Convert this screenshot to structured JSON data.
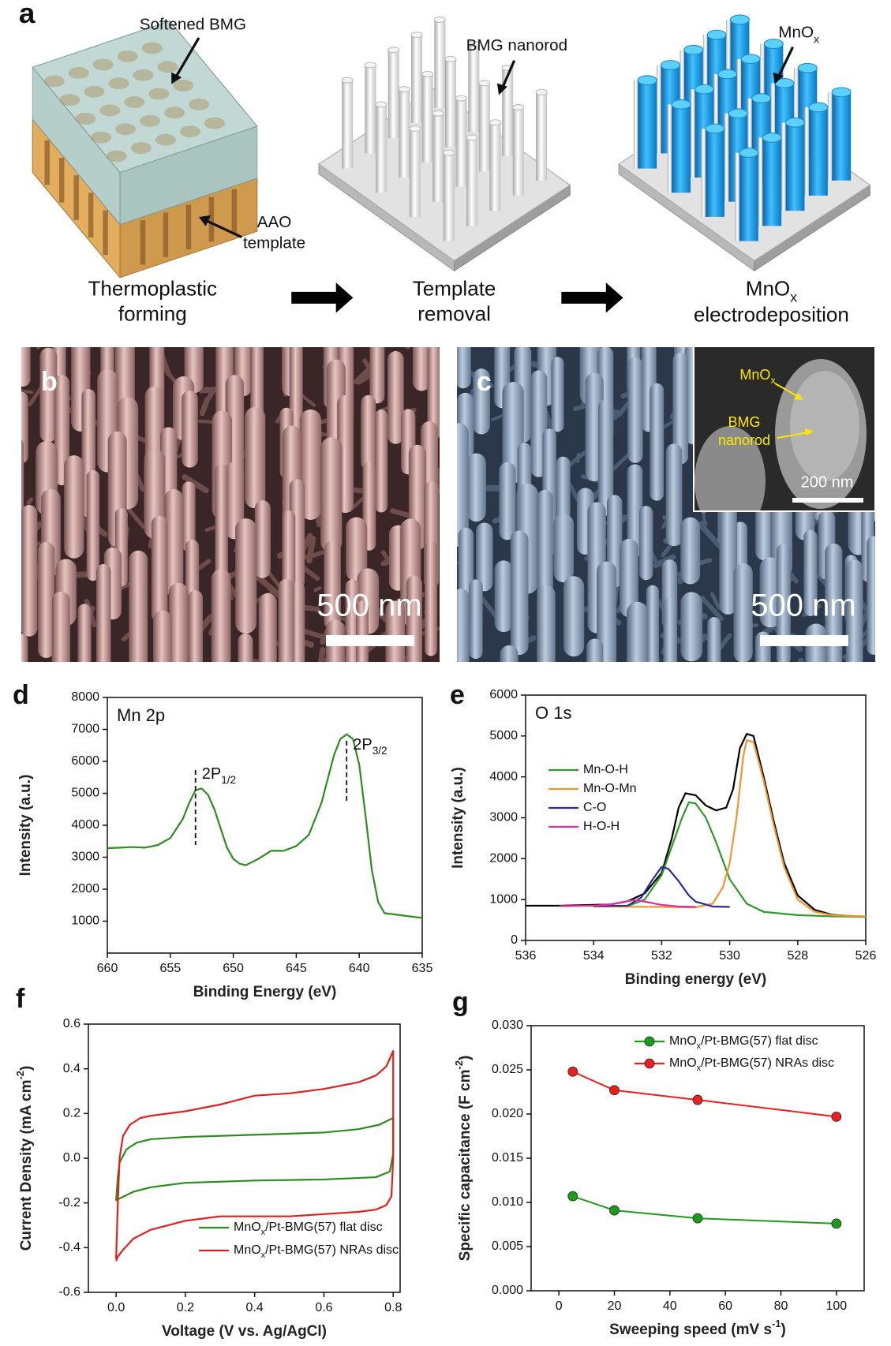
{
  "panel_a": {
    "letter": "a",
    "softened_bmg": "Softened BMG",
    "aao": "AAO",
    "template": "template",
    "bmg_nanorod": "BMG nanorod",
    "mnox": [
      "MnO",
      {
        "sub": "x"
      }
    ],
    "step1": [
      "Thermoplastic",
      "forming"
    ],
    "step2": [
      "Template",
      "removal"
    ],
    "step3": [
      [
        "MnO",
        {
          "sub": "x"
        }
      ],
      "electrodeposition"
    ]
  },
  "panel_b": {
    "letter": "b",
    "scale": "500 nm"
  },
  "panel_c": {
    "letter": "c",
    "scale": "500 nm",
    "inset": {
      "mnox": [
        "MnO",
        {
          "sub": "x"
        }
      ],
      "bmg": "BMG",
      "nanorod": "nanorod",
      "scale": "200 nm"
    }
  },
  "chart_data": [
    {
      "type": "line",
      "panel": "d",
      "label": "Mn 2p",
      "x_label": "Binding Energy (eV)",
      "y_label": "Intensity (a.u.)",
      "xlim": [
        660,
        635
      ],
      "xticks": [
        660,
        655,
        650,
        645,
        640,
        635
      ],
      "ylim": [
        0,
        8000
      ],
      "yticks": [
        1000,
        2000,
        3000,
        4000,
        5000,
        6000,
        7000,
        8000
      ],
      "annotations": [
        {
          "text": [
            "2P",
            {
              "sub": "1/2"
            }
          ],
          "x": 653
        },
        {
          "text": [
            "2P",
            {
              "sub": "3/2"
            }
          ],
          "x": 641
        }
      ],
      "series": [
        {
          "color": "#2e8b22",
          "x": [
            660,
            659,
            658,
            657,
            656,
            655,
            654,
            653.5,
            653,
            652.5,
            652,
            651.5,
            651,
            650.5,
            650,
            649.5,
            649,
            648.5,
            648,
            647,
            646,
            645,
            644,
            643,
            642,
            641.5,
            641,
            640.5,
            640,
            639.5,
            639,
            638.5,
            638,
            637,
            636,
            635
          ],
          "values": [
            3280,
            3300,
            3320,
            3300,
            3380,
            3600,
            4200,
            4700,
            5100,
            5150,
            4950,
            4500,
            3900,
            3300,
            2950,
            2800,
            2750,
            2850,
            2950,
            3200,
            3200,
            3350,
            3700,
            4700,
            6200,
            6700,
            6850,
            6700,
            5900,
            4300,
            2600,
            1600,
            1250,
            1200,
            1150,
            1100
          ]
        }
      ]
    },
    {
      "type": "line",
      "panel": "e",
      "label": "O 1s",
      "x_label": "Binding energy (eV)",
      "y_label": "Intensity (a.u.)",
      "xlim": [
        536,
        526
      ],
      "xticks": [
        536,
        534,
        532,
        530,
        528,
        526
      ],
      "ylim": [
        0,
        6000
      ],
      "yticks": [
        0,
        1000,
        2000,
        3000,
        4000,
        5000,
        6000
      ],
      "legend": "upper left",
      "series": [
        {
          "color": "#000000",
          "x": [
            536,
            535,
            534,
            533.5,
            533,
            532.5,
            532,
            531.7,
            531.5,
            531.3,
            531,
            530.7,
            530.4,
            530.1,
            529.9,
            529.7,
            529.5,
            529.3,
            529,
            528.7,
            528.4,
            528,
            527.5,
            527,
            526.5,
            526
          ],
          "values": [
            850,
            850,
            870,
            880,
            960,
            1150,
            1650,
            2500,
            3250,
            3600,
            3550,
            3300,
            3180,
            3250,
            3700,
            4700,
            5050,
            5000,
            4000,
            2900,
            1900,
            1100,
            750,
            630,
            600,
            580
          ]
        },
        {
          "name": "Mn-O-H",
          "color": "#2e9a2e",
          "x": [
            534,
            533,
            532.5,
            532,
            531.7,
            531.4,
            531.2,
            531,
            530.7,
            530.4,
            530,
            529.5,
            529,
            528,
            527,
            526
          ],
          "values": [
            830,
            840,
            1000,
            1600,
            2300,
            3000,
            3380,
            3350,
            3000,
            2400,
            1500,
            900,
            700,
            620,
            590,
            580
          ]
        },
        {
          "name": "Mn-O-Mn",
          "color": "#f0962e",
          "x": [
            534,
            532,
            531,
            530.5,
            530.2,
            530,
            529.8,
            529.6,
            529.5,
            529.3,
            529,
            528.7,
            528.4,
            528,
            527.5,
            527,
            526
          ],
          "values": [
            830,
            820,
            810,
            900,
            1300,
            1900,
            3000,
            4500,
            4900,
            4850,
            3900,
            2800,
            1800,
            1000,
            700,
            620,
            590
          ]
        },
        {
          "name": "C-O",
          "color": "#2a2a9a",
          "x": [
            534,
            533,
            532.6,
            532.3,
            532,
            531.8,
            531.5,
            531.2,
            531,
            530.5,
            530
          ],
          "values": [
            840,
            850,
            1050,
            1450,
            1800,
            1750,
            1450,
            1100,
            950,
            830,
            820
          ]
        },
        {
          "name": "H-O-H",
          "color": "#e0309a",
          "x": [
            535,
            534,
            533.5,
            533,
            532.8,
            532.5,
            532,
            531.5,
            531
          ],
          "values": [
            840,
            850,
            880,
            960,
            990,
            950,
            870,
            830,
            820
          ]
        }
      ]
    },
    {
      "type": "line",
      "panel": "f",
      "x_label": "Voltage (V vs. Ag/AgCl)",
      "y_label": [
        "Current Density (mA cm",
        {
          "sup": "-2"
        },
        ")"
      ],
      "xlim": [
        -0.08,
        0.82
      ],
      "xticks": [
        {
          "value": 0,
          "label": "0.0"
        },
        0.2,
        0.4,
        0.6,
        0.8
      ],
      "ylim": [
        -0.6,
        0.6
      ],
      "yticks": [
        -0.6,
        -0.4,
        -0.2,
        {
          "value": 0,
          "label": "0.0"
        },
        0.2,
        0.4,
        0.6
      ],
      "legend": "lower right",
      "series": [
        {
          "name": [
            "MnO",
            {
              "sub": "x"
            },
            "/Pt-BMG(57) flat disc"
          ],
          "color": "#2e8b22",
          "x": [
            0,
            0.005,
            0.01,
            0.03,
            0.06,
            0.1,
            0.2,
            0.4,
            0.6,
            0.7,
            0.76,
            0.8,
            0.8,
            0.79,
            0.75,
            0.6,
            0.4,
            0.2,
            0.1,
            0.05,
            0.01,
            0
          ],
          "values": [
            -0.19,
            -0.08,
            -0.02,
            0.04,
            0.07,
            0.085,
            0.095,
            0.105,
            0.115,
            0.13,
            0.15,
            0.18,
            0.02,
            -0.06,
            -0.085,
            -0.095,
            -0.1,
            -0.11,
            -0.13,
            -0.15,
            -0.18,
            -0.19
          ]
        },
        {
          "name": [
            "MnO",
            {
              "sub": "x"
            },
            "/Pt-BMG(57) NRAs disc"
          ],
          "color": "#e02020",
          "x": [
            0,
            0.005,
            0.01,
            0.02,
            0.04,
            0.07,
            0.1,
            0.2,
            0.3,
            0.4,
            0.5,
            0.6,
            0.7,
            0.75,
            0.78,
            0.8,
            0.8,
            0.795,
            0.78,
            0.75,
            0.7,
            0.6,
            0.5,
            0.4,
            0.3,
            0.2,
            0.1,
            0.05,
            0.02,
            0.005,
            0
          ],
          "values": [
            -0.45,
            -0.2,
            0,
            0.1,
            0.15,
            0.18,
            0.19,
            0.21,
            0.24,
            0.28,
            0.29,
            0.31,
            0.34,
            0.37,
            0.41,
            0.48,
            0,
            -0.17,
            -0.21,
            -0.23,
            -0.24,
            -0.25,
            -0.26,
            -0.26,
            -0.26,
            -0.28,
            -0.32,
            -0.36,
            -0.41,
            -0.44,
            -0.46
          ]
        }
      ]
    },
    {
      "type": "line",
      "panel": "g",
      "marker": "circle",
      "x_label": [
        "Sweeping speed (mV s",
        {
          "sup": "-1"
        },
        ")"
      ],
      "y_label": [
        "Specific capacitance (F cm",
        {
          "sup": "-2"
        },
        ")"
      ],
      "xlim": [
        -10,
        110
      ],
      "xticks": [
        0,
        20,
        40,
        60,
        80,
        100
      ],
      "ylim": [
        0,
        0.03
      ],
      "yticks": [
        {
          "value": 0,
          "label": "0.000"
        },
        {
          "value": 0.005,
          "label": "0.005"
        },
        {
          "value": 0.01,
          "label": "0.010"
        },
        {
          "value": 0.015,
          "label": "0.015"
        },
        {
          "value": 0.02,
          "label": "0.020"
        },
        {
          "value": 0.025,
          "label": "0.025"
        },
        {
          "value": 0.03,
          "label": "0.030"
        }
      ],
      "legend": "upper right",
      "series": [
        {
          "name": [
            "MnO",
            {
              "sub": "x"
            },
            "/Pt-BMG(57) flat disc"
          ],
          "color": "#1f9a1f",
          "x": [
            5,
            20,
            50,
            100
          ],
          "values": [
            0.0107,
            0.0091,
            0.0082,
            0.0076
          ]
        },
        {
          "name": [
            "MnO",
            {
              "sub": "x"
            },
            "/Pt-BMG(57) NRAs disc"
          ],
          "color": "#e82020",
          "x": [
            5,
            20,
            50,
            100
          ],
          "values": [
            0.0248,
            0.0227,
            0.0216,
            0.0197
          ]
        }
      ]
    }
  ]
}
